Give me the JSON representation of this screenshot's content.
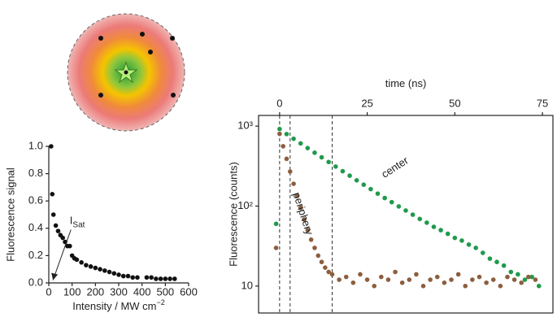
{
  "chart_data": [
    {
      "type": "scatter",
      "y_label": "Fluorescence signal",
      "x_label": "Intensity / MW cm",
      "x_label_sup": "−2",
      "annotation": {
        "text": "I",
        "subscript": "Sat"
      },
      "xlim": [
        0,
        600
      ],
      "xticks": [
        0,
        100,
        200,
        300,
        400,
        500,
        600
      ],
      "ylim": [
        0,
        1
      ],
      "yticks": [
        {
          "value": 0,
          "label": "0.0"
        },
        0.2,
        0.4,
        0.6,
        {
          "value": 1.0,
          "label": "1.0"
        },
        0.8
      ],
      "series": [
        {
          "name": null,
          "color": "#111111",
          "x": [
            10,
            15,
            20,
            30,
            40,
            50,
            60,
            70,
            80,
            90,
            100,
            110,
            120,
            140,
            160,
            180,
            200,
            220,
            240,
            260,
            280,
            300,
            320,
            340,
            360,
            380,
            420,
            440,
            460,
            480,
            500,
            520,
            540
          ],
          "values": [
            1.0,
            0.65,
            0.5,
            0.42,
            0.38,
            0.35,
            0.33,
            0.3,
            0.27,
            0.27,
            0.2,
            0.18,
            0.17,
            0.15,
            0.13,
            0.12,
            0.11,
            0.1,
            0.09,
            0.08,
            0.07,
            0.06,
            0.05,
            0.05,
            0.04,
            0.04,
            0.04,
            0.04,
            0.03,
            0.03,
            0.03,
            0.03,
            0.03
          ]
        }
      ]
    },
    {
      "type": "scatter",
      "x_label": "time (ns)",
      "y_label": "Fluorescence (counts)",
      "log_y": true,
      "xlim": [
        -6,
        78
      ],
      "xticks": [
        0,
        25,
        50,
        75
      ],
      "ylim": [
        4.6,
        1360
      ],
      "yticks": [
        10,
        {
          "value": 100,
          "label": "10²"
        },
        {
          "value": 1000,
          "label": "10³"
        }
      ],
      "reference_lines": [
        0,
        3,
        15
      ],
      "series": [
        {
          "name": "center",
          "color": "#1f9a4c",
          "x": [
            -1,
            0,
            2,
            4,
            6,
            8,
            10,
            12,
            14,
            16,
            18,
            20,
            22,
            24,
            26,
            28,
            30,
            32,
            34,
            36,
            38,
            40,
            42,
            44,
            46,
            48,
            50,
            52,
            54,
            56,
            58,
            60,
            62,
            64,
            66,
            68,
            70,
            72,
            74
          ],
          "values": [
            60,
            920,
            796,
            695,
            608,
            531,
            465,
            407,
            356,
            312,
            273,
            240,
            210,
            185,
            163,
            143,
            126,
            112,
            99,
            88,
            78,
            69,
            62,
            55,
            50,
            45,
            40,
            37,
            33,
            30,
            26,
            22,
            20,
            18,
            15,
            14,
            12,
            13,
            10
          ]
        },
        {
          "name": "periphery",
          "color": "#8c5e3f",
          "x": [
            -1,
            0,
            1,
            2,
            3,
            4,
            5,
            6,
            7,
            8,
            9,
            10,
            11,
            12,
            13,
            14,
            15,
            17,
            19,
            21,
            23,
            25,
            27,
            29,
            31,
            33,
            35,
            37,
            39,
            41,
            43,
            45,
            47,
            49,
            51,
            53,
            55,
            57,
            59,
            61,
            63,
            65,
            67,
            69,
            71,
            73
          ],
          "values": [
            30,
            800,
            560,
            390,
            270,
            190,
            135,
            95,
            68,
            50,
            38,
            30,
            24,
            20,
            17,
            15,
            14,
            12,
            13,
            11,
            14,
            12,
            10,
            13,
            12,
            15,
            11,
            12,
            14,
            10,
            12,
            13,
            11,
            12,
            14,
            10,
            12,
            13,
            11,
            12,
            10,
            13,
            12,
            11,
            13,
            12
          ]
        }
      ]
    }
  ]
}
